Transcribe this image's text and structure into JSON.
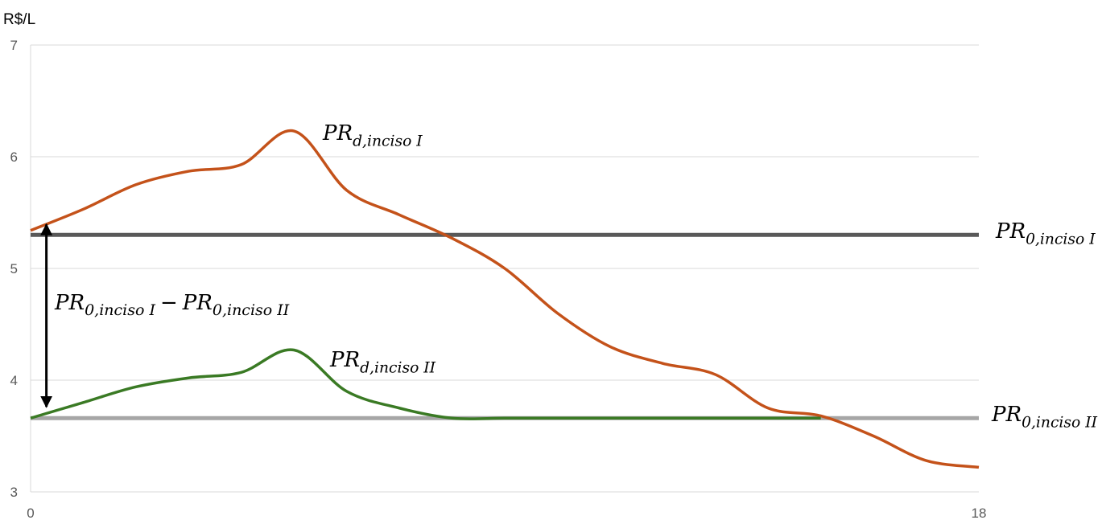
{
  "chart_data": {
    "type": "line",
    "title": "",
    "xlabel": "",
    "ylabel": "R$/L",
    "xlim": [
      0,
      18
    ],
    "ylim": [
      3,
      7
    ],
    "x_ticks": [
      "0",
      "18"
    ],
    "y_ticks": [
      "3",
      "4",
      "5",
      "6",
      "7"
    ],
    "grid": "horizontal",
    "colors": {
      "pr_d_inciso_I": "#c4521a",
      "pr_d_inciso_II": "#3a7a24",
      "pr_0_inciso_I": "#595959",
      "pr_0_inciso_II": "#a6a6a6",
      "grid": "#d9d9d9",
      "arrow": "#000000"
    },
    "series": [
      {
        "key": "pr_d_inciso_I",
        "label_main": "PR",
        "label_sub": "d,inciso I",
        "x": [
          0,
          1,
          2,
          3,
          4,
          5,
          6,
          7,
          8,
          9,
          10,
          11,
          12,
          13,
          14,
          15,
          16,
          17,
          18
        ],
        "values": [
          5.34,
          5.53,
          5.75,
          5.87,
          5.93,
          6.23,
          5.7,
          5.48,
          5.27,
          5.0,
          4.6,
          4.3,
          4.15,
          4.05,
          3.75,
          3.68,
          3.5,
          3.28,
          3.22
        ]
      },
      {
        "key": "pr_d_inciso_II",
        "label_main": "PR",
        "label_sub": "d,inciso II",
        "x": [
          0,
          1,
          2,
          3,
          4,
          5,
          6,
          7,
          8,
          9,
          10,
          11,
          12,
          13,
          14,
          15
        ],
        "values": [
          3.66,
          3.8,
          3.94,
          4.02,
          4.07,
          4.27,
          3.9,
          3.75,
          3.66,
          3.66,
          3.66,
          3.66,
          3.66,
          3.66,
          3.66,
          3.66
        ]
      },
      {
        "key": "pr_0_inciso_I",
        "label_main": "PR",
        "label_sub": "0,inciso I",
        "x": [
          0,
          18
        ],
        "values": [
          5.3,
          5.3
        ]
      },
      {
        "key": "pr_0_inciso_II",
        "label_main": "PR",
        "label_sub": "0,inciso II",
        "x": [
          0,
          18
        ],
        "values": [
          3.66,
          3.66
        ]
      }
    ],
    "annotation": {
      "label_a_main": "PR",
      "label_a_sub": "0,inciso I",
      "minus": "−",
      "label_b_main": "PR",
      "label_b_sub": "0,inciso II",
      "from": 5.3,
      "to": 3.66,
      "x": 0.3
    }
  }
}
